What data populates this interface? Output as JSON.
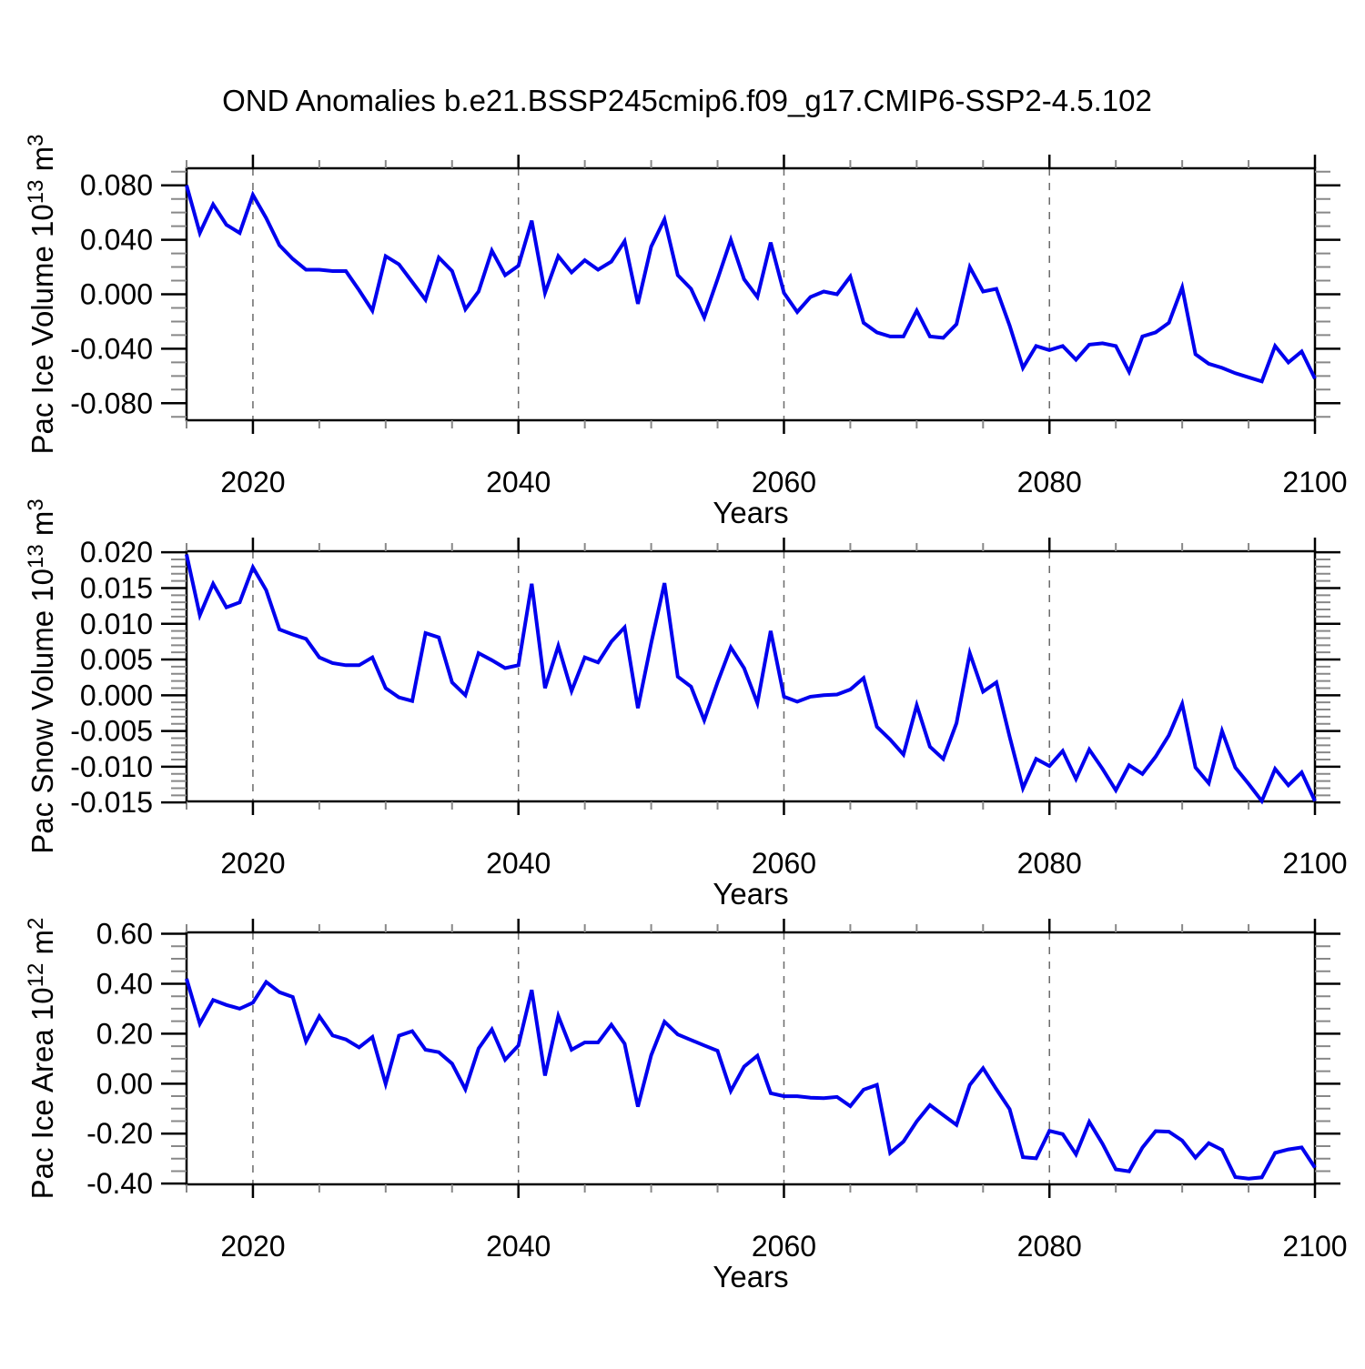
{
  "title": "OND Anomalies b.e21.BSSP245cmip6.f09_g17.CMIP6-SSP2-4.5.102",
  "colors": {
    "line": "#0000ee",
    "frame": "#000000",
    "grid": "#6b6b6b",
    "major_tick": "#000000",
    "minor_tick": "#888888",
    "background": "#ffffff"
  },
  "years": [
    2015,
    2016,
    2017,
    2018,
    2019,
    2020,
    2021,
    2022,
    2023,
    2024,
    2025,
    2026,
    2027,
    2028,
    2029,
    2030,
    2031,
    2032,
    2033,
    2034,
    2035,
    2036,
    2037,
    2038,
    2039,
    2040,
    2041,
    2042,
    2043,
    2044,
    2045,
    2046,
    2047,
    2048,
    2049,
    2050,
    2051,
    2052,
    2053,
    2054,
    2055,
    2056,
    2057,
    2058,
    2059,
    2060,
    2061,
    2062,
    2063,
    2064,
    2065,
    2066,
    2067,
    2068,
    2069,
    2070,
    2071,
    2072,
    2073,
    2074,
    2075,
    2076,
    2077,
    2078,
    2079,
    2080,
    2081,
    2082,
    2083,
    2084,
    2085,
    2086,
    2087,
    2088,
    2089,
    2090,
    2091,
    2092,
    2093,
    2094,
    2095,
    2096,
    2097,
    2098,
    2099,
    2100
  ],
  "chart_data": [
    {
      "type": "line",
      "name": "pac-ice-volume",
      "ylabel": "Pac Ice Volume 10^13 m^3",
      "xlabel": "Years",
      "ylim": [
        -0.0925,
        0.0925
      ],
      "yticks_major": [
        0.08,
        0.04,
        0.0,
        -0.04,
        -0.08
      ],
      "ytick_labels": [
        "0.080",
        "0.040",
        "0.000",
        "-0.040",
        "-0.080"
      ],
      "ytick_minor_step": 0.01,
      "xticks_major": [
        2020,
        2040,
        2060,
        2080,
        2100
      ],
      "xtick_labels": [
        "2020",
        "2040",
        "2060",
        "2080",
        "2100"
      ],
      "xtick_minor_step": 5,
      "gridlines_x": [
        2020,
        2040,
        2060,
        2080
      ],
      "xlim": [
        2015,
        2100
      ],
      "values": [
        0.08,
        0.045,
        0.066,
        0.051,
        0.045,
        0.073,
        0.056,
        0.036,
        0.026,
        0.018,
        0.018,
        0.017,
        0.017,
        0.003,
        -0.012,
        0.028,
        0.022,
        0.009,
        -0.004,
        0.027,
        0.017,
        -0.011,
        0.002,
        0.032,
        0.014,
        0.021,
        0.054,
        0.001,
        0.028,
        0.016,
        0.025,
        0.018,
        0.024,
        0.039,
        -0.007,
        0.035,
        0.055,
        0.014,
        0.004,
        -0.017,
        0.011,
        0.04,
        0.011,
        -0.002,
        0.038,
        0.001,
        -0.013,
        -0.002,
        0.002,
        0.0,
        0.013,
        -0.021,
        -0.028,
        -0.031,
        -0.031,
        -0.012,
        -0.031,
        -0.032,
        -0.022,
        0.02,
        0.002,
        0.004,
        -0.023,
        -0.054,
        -0.038,
        -0.041,
        -0.038,
        -0.048,
        -0.037,
        -0.036,
        -0.038,
        -0.057,
        -0.031,
        -0.028,
        -0.021,
        0.005,
        -0.044,
        -0.051,
        -0.054,
        -0.058,
        -0.061,
        -0.064,
        -0.038,
        -0.05,
        -0.042,
        -0.062
      ]
    },
    {
      "type": "line",
      "name": "pac-snow-volume",
      "ylabel": "Pac Snow Volume 10^13 m^3",
      "xlabel": "Years",
      "ylim": [
        -0.01485,
        0.02015
      ],
      "yticks_major": [
        0.02,
        0.015,
        0.01,
        0.005,
        0.0,
        -0.005,
        -0.01,
        -0.015
      ],
      "ytick_labels": [
        "0.020",
        "0.015",
        "0.010",
        "0.005",
        "0.000",
        "-0.005",
        "-0.010",
        "-0.015"
      ],
      "ytick_minor_step": 0.001,
      "xticks_major": [
        2020,
        2040,
        2060,
        2080,
        2100
      ],
      "xtick_labels": [
        "2020",
        "2040",
        "2060",
        "2080",
        "2100"
      ],
      "xtick_minor_step": 5,
      "gridlines_x": [
        2020,
        2040,
        2060,
        2080
      ],
      "xlim": [
        2015,
        2100
      ],
      "values": [
        0.0197,
        0.0112,
        0.0156,
        0.0123,
        0.013,
        0.0179,
        0.0147,
        0.0092,
        0.0085,
        0.0079,
        0.0053,
        0.0045,
        0.0042,
        0.0042,
        0.0053,
        0.001,
        -0.0003,
        -0.0008,
        0.0087,
        0.0081,
        0.0018,
        0.0,
        0.0059,
        0.0049,
        0.0038,
        0.0042,
        0.0156,
        0.001,
        0.0069,
        0.0006,
        0.0053,
        0.0046,
        0.0075,
        0.0095,
        -0.0018,
        0.0073,
        0.0157,
        0.0026,
        0.0012,
        -0.0035,
        0.0018,
        0.0067,
        0.0038,
        -0.0011,
        0.009,
        -0.0002,
        -0.0009,
        -0.0002,
        0.0,
        0.0001,
        0.0008,
        0.0024,
        -0.0044,
        -0.0062,
        -0.0083,
        -0.0014,
        -0.0072,
        -0.0089,
        -0.0039,
        0.0059,
        0.0005,
        0.0018,
        -0.0058,
        -0.013,
        -0.0089,
        -0.0099,
        -0.0078,
        -0.0117,
        -0.0076,
        -0.0103,
        -0.0133,
        -0.0098,
        -0.011,
        -0.0086,
        -0.0056,
        -0.0012,
        -0.0101,
        -0.0123,
        -0.005,
        -0.0101,
        -0.0124,
        -0.0148,
        -0.0103,
        -0.0126,
        -0.0108,
        -0.0148
      ]
    },
    {
      "type": "line",
      "name": "pac-ice-area",
      "ylabel": "Pac Ice Area 10^12 m^2",
      "xlabel": "Years",
      "ylim": [
        -0.403,
        0.6056
      ],
      "yticks_major": [
        0.6,
        0.4,
        0.2,
        0.0,
        -0.2,
        -0.4
      ],
      "ytick_labels": [
        "0.60",
        "0.40",
        "0.20",
        "0.00",
        "-0.20",
        "-0.40"
      ],
      "ytick_minor_step": 0.05,
      "xticks_major": [
        2020,
        2040,
        2060,
        2080,
        2100
      ],
      "xtick_labels": [
        "2020",
        "2040",
        "2060",
        "2080",
        "2100"
      ],
      "xtick_minor_step": 5,
      "gridlines_x": [
        2020,
        2040,
        2060,
        2080
      ],
      "xlim": [
        2015,
        2100
      ],
      "values": [
        0.42,
        0.24,
        0.335,
        0.315,
        0.3,
        0.324,
        0.407,
        0.366,
        0.347,
        0.169,
        0.27,
        0.193,
        0.177,
        0.145,
        0.187,
        -0.001,
        0.192,
        0.21,
        0.136,
        0.126,
        0.08,
        -0.022,
        0.141,
        0.217,
        0.096,
        0.153,
        0.375,
        0.032,
        0.271,
        0.136,
        0.165,
        0.165,
        0.236,
        0.16,
        -0.092,
        0.114,
        0.248,
        0.197,
        0.175,
        0.153,
        0.132,
        -0.029,
        0.068,
        0.112,
        -0.038,
        -0.05,
        -0.05,
        -0.056,
        -0.058,
        -0.053,
        -0.09,
        -0.024,
        -0.005,
        -0.277,
        -0.232,
        -0.151,
        -0.086,
        -0.126,
        -0.165,
        -0.005,
        0.062,
        -0.022,
        -0.102,
        -0.294,
        -0.299,
        -0.189,
        -0.202,
        -0.283,
        -0.153,
        -0.241,
        -0.343,
        -0.351,
        -0.256,
        -0.19,
        -0.192,
        -0.228,
        -0.296,
        -0.238,
        -0.265,
        -0.374,
        -0.38,
        -0.375,
        -0.277,
        -0.263,
        -0.255,
        -0.336
      ]
    }
  ]
}
